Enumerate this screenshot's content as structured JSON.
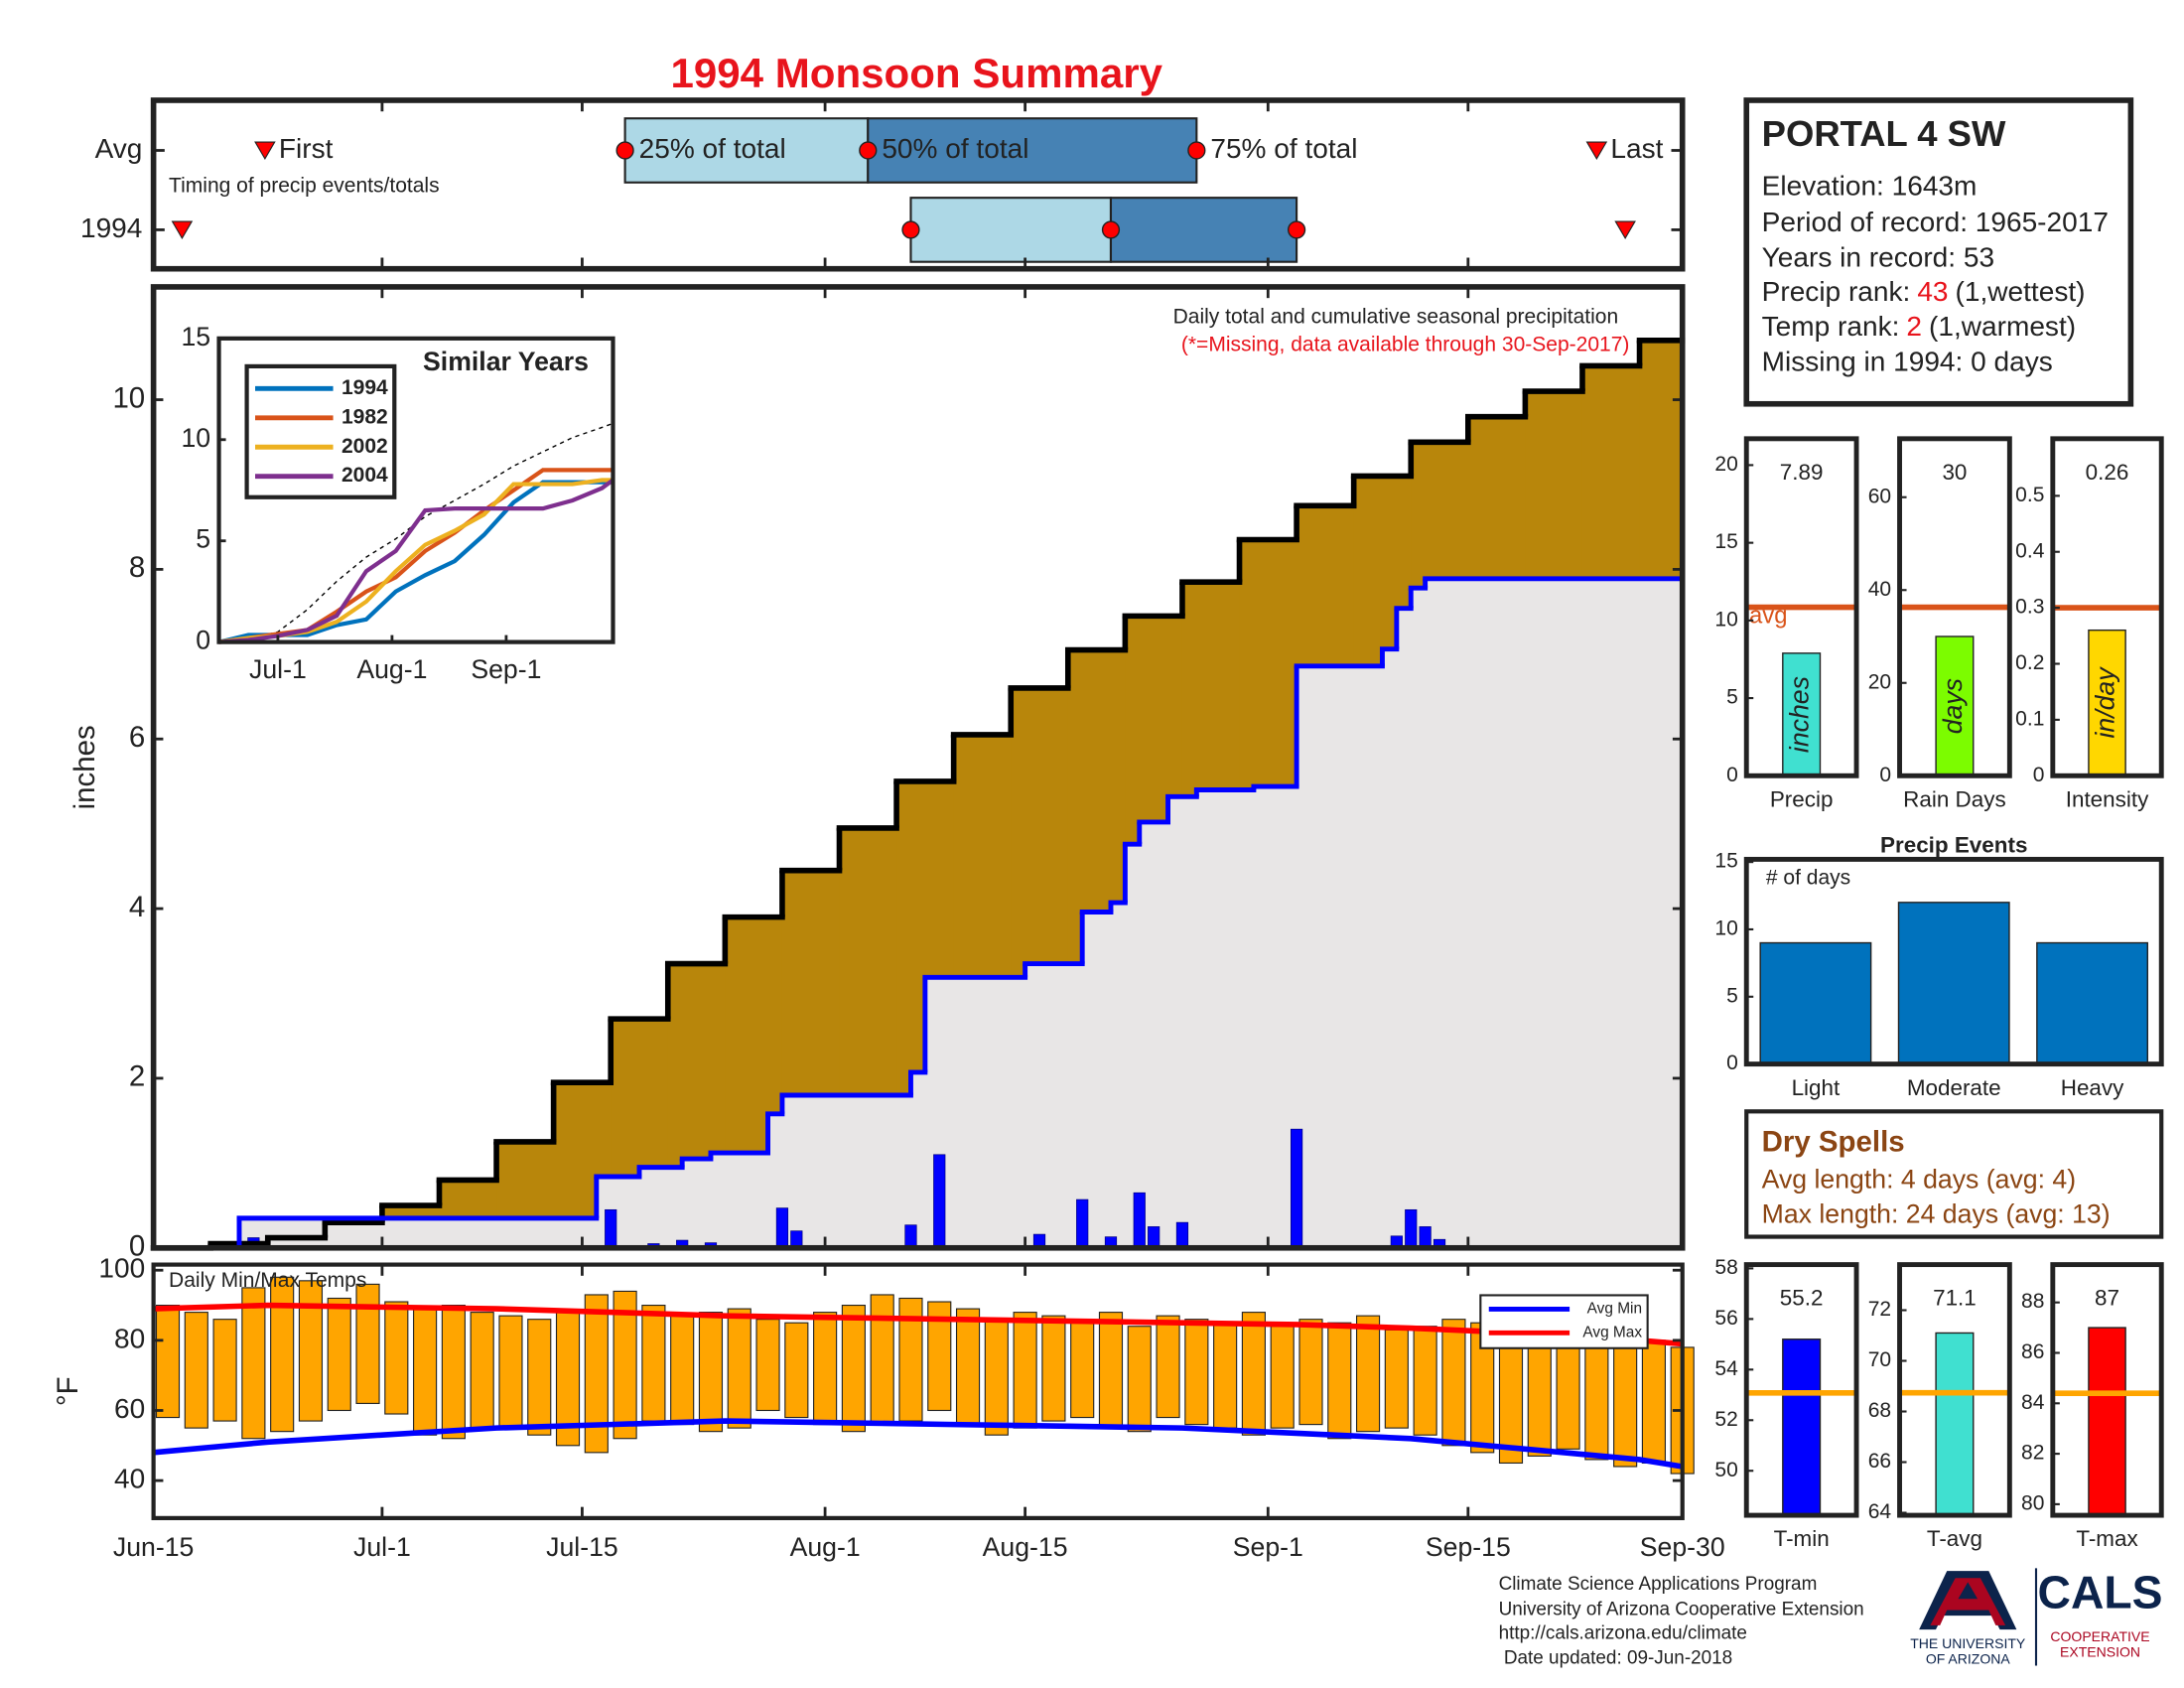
{
  "title": "1994 Monsoon Summary",
  "station": {
    "name": "PORTAL 4 SW",
    "elevation": "Elevation: 1643m",
    "period": "Period of record: 1965-2017",
    "years": "Years in record: 53",
    "precip_rank": {
      "label": "Precip rank:",
      "value": 43,
      "note": "(1,wettest)"
    },
    "temp_rank": {
      "label": "Temp rank:",
      "value": 2,
      "note": "(1,warmest)"
    },
    "missing": "Missing in 1994: 0 days"
  },
  "dry_spells": {
    "title": "Dry Spells",
    "lines": [
      "Avg length: 4 days (avg: 4)",
      "Max length: 24 days (avg: 13)"
    ],
    "color": "#8b4513"
  },
  "footer": [
    "Climate Science Applications Program",
    "University of Arizona Cooperative Extension",
    "http://cals.arizona.edu/climate",
    " Date updated: 09-Jun-2018"
  ],
  "logo": {
    "university": [
      "THE UNIVERSITY",
      "OF ARIZONA"
    ],
    "cals": "CALS",
    "extension": [
      "COOPERATIVE",
      "EXTENSION"
    ]
  },
  "chart_data": [
    {
      "type": "timeline",
      "annotation": "Timing of precip events/totals",
      "markers": [
        "First",
        "25% of total",
        "50% of total",
        "75% of total",
        "Last"
      ],
      "series": [
        {
          "name": "Avg",
          "values": [
            7.8,
            33,
            50,
            73,
            101
          ]
        },
        {
          "name": "1994",
          "values": [
            2,
            53,
            67,
            80,
            103
          ]
        }
      ],
      "xlim": [
        0,
        107
      ],
      "colors": [
        "#add8e6",
        "#4682b4"
      ],
      "marker_color": "#ff0000"
    },
    {
      "type": "step",
      "annotation": "Daily total and cumulative seasonal precipitation",
      "note": "(*=Missing, data available through 30-Sep-2017)",
      "ylabel": "inches",
      "xlim": [
        0,
        107
      ],
      "ylim": [
        0,
        11.33
      ],
      "yticks": [
        0,
        2,
        4,
        6,
        8,
        10
      ],
      "cumulative_avg": {
        "x": [
          0,
          4,
          8,
          12,
          16,
          20,
          24,
          28,
          32,
          36,
          40,
          44,
          48,
          52,
          56,
          60,
          64,
          68,
          72,
          76,
          80,
          84,
          88,
          92,
          96,
          100,
          104
        ],
        "values": [
          0,
          0.05,
          0.12,
          0.3,
          0.5,
          0.8,
          1.25,
          1.95,
          2.7,
          3.35,
          3.9,
          4.45,
          4.95,
          5.5,
          6.05,
          6.6,
          7.05,
          7.45,
          7.85,
          8.35,
          8.75,
          9.1,
          9.5,
          9.8,
          10.1,
          10.4,
          10.7
        ],
        "color": "#000000",
        "fill": "#b8860b"
      },
      "cumulative_year": {
        "x": [
          0,
          6,
          31,
          34,
          37,
          39,
          43,
          44,
          53,
          54,
          61,
          65,
          67,
          68,
          69,
          71,
          73,
          77,
          80,
          86,
          87,
          88,
          89
        ],
        "values": [
          0,
          0.35,
          0.84,
          0.95,
          1.05,
          1.12,
          1.58,
          1.8,
          2.07,
          3.19,
          3.35,
          3.96,
          4.07,
          4.76,
          5.02,
          5.32,
          5.4,
          5.44,
          6.86,
          7.06,
          7.54,
          7.78,
          7.89
        ],
        "color": "#0000ff",
        "fill": "#e8e6e6"
      },
      "daily": {
        "x": [
          7,
          32,
          35,
          37,
          39,
          44,
          45,
          53,
          55,
          62,
          65,
          67,
          69,
          70,
          72,
          80,
          87,
          88,
          89,
          90
        ],
        "values": [
          0.12,
          0.45,
          0.05,
          0.09,
          0.06,
          0.47,
          0.2,
          0.27,
          1.1,
          0.16,
          0.57,
          0.13,
          0.65,
          0.25,
          0.3,
          1.4,
          0.14,
          0.45,
          0.25,
          0.1
        ],
        "color": "#0000ff"
      }
    },
    {
      "type": "line",
      "title": "Similar Years",
      "xlim": [
        0,
        107
      ],
      "ylim": [
        0,
        15
      ],
      "yticks": [
        0,
        5,
        10,
        15
      ],
      "xticks": [
        {
          "value": 16,
          "label": "Jul-1"
        },
        {
          "value": 47,
          "label": "Aug-1"
        },
        {
          "value": 78,
          "label": "Sep-1"
        }
      ],
      "legend": "upper left",
      "x": [
        0,
        8,
        16,
        24,
        32,
        40,
        48,
        56,
        64,
        72,
        80,
        88,
        96,
        104,
        107
      ],
      "series": [
        {
          "color": "#000000",
          "dash": true,
          "values": [
            0,
            0.12,
            0.5,
            1.6,
            3.0,
            4.2,
            5.1,
            6.2,
            7.0,
            7.8,
            8.7,
            9.4,
            10.1,
            10.6,
            10.8
          ]
        },
        {
          "name": "1994",
          "color": "#0072bd",
          "values": [
            0,
            0.35,
            0.35,
            0.35,
            0.84,
            1.12,
            2.5,
            3.3,
            4.0,
            5.3,
            6.9,
            7.9,
            7.9,
            7.9,
            7.9
          ]
        },
        {
          "name": "1982",
          "color": "#d95319",
          "values": [
            0,
            0.2,
            0.4,
            0.6,
            1.5,
            2.5,
            3.2,
            4.5,
            5.4,
            6.5,
            7.5,
            8.5,
            8.5,
            8.5,
            8.5
          ]
        },
        {
          "name": "2002",
          "color": "#edb120",
          "values": [
            0,
            0.2,
            0.3,
            0.5,
            1.0,
            2.0,
            3.5,
            4.8,
            5.5,
            6.3,
            7.8,
            7.8,
            7.8,
            8.0,
            8.0
          ]
        },
        {
          "name": "2004",
          "color": "#7e2f8e",
          "values": [
            0,
            0.1,
            0.3,
            0.6,
            1.3,
            3.5,
            4.5,
            6.5,
            6.6,
            6.6,
            6.6,
            6.6,
            7.0,
            7.6,
            8.0
          ]
        }
      ]
    },
    {
      "type": "floating",
      "title": "Daily Min/Max Temps",
      "ylabel": "°F",
      "xlim": [
        0,
        107
      ],
      "ylim": [
        29.3,
        101.6
      ],
      "yticks": [
        40,
        60,
        80,
        100
      ],
      "xticks": [
        {
          "value": 0,
          "label": "Jun-15"
        },
        {
          "value": 16,
          "label": "Jul-1"
        },
        {
          "value": 30,
          "label": "Jul-15"
        },
        {
          "value": 47,
          "label": "Aug-1"
        },
        {
          "value": 61,
          "label": "Aug-15"
        },
        {
          "value": 78,
          "label": "Sep-1"
        },
        {
          "value": 92,
          "label": "Sep-15"
        },
        {
          "value": 107,
          "label": "Sep-30"
        }
      ],
      "color": "#ffa500",
      "x": [
        0,
        2,
        4,
        6,
        8,
        10,
        12,
        14,
        16,
        18,
        20,
        22,
        24,
        26,
        28,
        30,
        32,
        34,
        36,
        38,
        40,
        42,
        44,
        46,
        48,
        50,
        52,
        54,
        56,
        58,
        60,
        62,
        64,
        66,
        68,
        70,
        72,
        74,
        76,
        78,
        80,
        82,
        84,
        86,
        88,
        90,
        92,
        94,
        96,
        98,
        100,
        102,
        104,
        106
      ],
      "high": [
        90,
        88,
        86,
        95,
        98,
        97,
        92,
        96,
        91,
        89,
        90,
        88,
        87,
        86,
        88,
        93,
        94,
        90,
        87,
        88,
        89,
        86,
        85,
        88,
        90,
        93,
        92,
        91,
        89,
        86,
        88,
        87,
        86,
        88,
        84,
        87,
        86,
        85,
        88,
        84,
        86,
        85,
        87,
        83,
        84,
        86,
        85,
        84,
        82,
        80,
        83,
        81,
        80,
        78
      ],
      "low": [
        58,
        55,
        57,
        52,
        54,
        57,
        60,
        62,
        59,
        53,
        52,
        55,
        55,
        53,
        50,
        48,
        52,
        57,
        56,
        54,
        55,
        60,
        58,
        56,
        54,
        56,
        57,
        60,
        56,
        53,
        55,
        57,
        58,
        55,
        54,
        58,
        56,
        55,
        53,
        55,
        56,
        52,
        54,
        55,
        53,
        50,
        48,
        45,
        47,
        49,
        46,
        44,
        45,
        42
      ],
      "legend": "upper right",
      "lines": [
        {
          "name": "Avg Min",
          "color": "#0000ff",
          "x": [
            0,
            8,
            16,
            24,
            32,
            40,
            48,
            56,
            64,
            72,
            80,
            88,
            96,
            104,
            107
          ],
          "values": [
            48,
            51,
            53,
            55,
            56,
            57,
            56.5,
            56,
            55.5,
            55,
            53.5,
            52,
            49,
            46,
            44
          ]
        },
        {
          "name": "Avg Max",
          "color": "#ff0000",
          "x": [
            0,
            8,
            16,
            24,
            32,
            40,
            48,
            56,
            64,
            72,
            80,
            88,
            96,
            104,
            107
          ],
          "values": [
            89,
            90,
            89.5,
            89,
            88,
            87,
            86.5,
            86,
            85.5,
            85,
            84.5,
            83.5,
            82,
            80,
            79
          ]
        }
      ]
    },
    {
      "type": "bar",
      "categories": [
        "Precip"
      ],
      "values": [
        7.89
      ],
      "color": "#40e0d0",
      "bar_label": "inches",
      "avg": 10.85,
      "avg_label": "avg",
      "avg_color": "#d95319",
      "ylim": [
        0,
        21.7
      ],
      "yticks": [
        0,
        5,
        10,
        15,
        20
      ]
    },
    {
      "type": "bar",
      "categories": [
        "Rain Days"
      ],
      "values": [
        30
      ],
      "color": "#7cfc00",
      "bar_label": "days",
      "avg": 36.3,
      "avg_color": "#d95319",
      "ylim": [
        0,
        72.6
      ],
      "yticks": [
        0,
        20,
        40,
        60
      ]
    },
    {
      "type": "bar",
      "categories": [
        "Intensity"
      ],
      "values": [
        0.26
      ],
      "color": "#ffd700",
      "bar_label": "in/day",
      "avg": 0.3,
      "avg_color": "#d95319",
      "ylim": [
        0,
        0.602
      ],
      "yticks": [
        0,
        0.1,
        0.2,
        0.3,
        0.4,
        0.5
      ]
    },
    {
      "type": "bar",
      "title": "Precip Events",
      "annotation": "# of days",
      "categories": [
        "Light",
        "Moderate",
        "Heavy"
      ],
      "values": [
        9,
        12,
        9
      ],
      "color": "#0072bd",
      "ylim": [
        0,
        15.2
      ],
      "yticks": [
        0,
        5,
        10,
        15
      ]
    },
    {
      "type": "bar",
      "categories": [
        "T-min"
      ],
      "values": [
        55.2
      ],
      "color": "#0000ff",
      "avg": 53.08,
      "avg_color": "#ffa500",
      "ylim": [
        48.24,
        58.15
      ],
      "yticks": [
        50,
        52,
        54,
        56,
        58
      ]
    },
    {
      "type": "bar",
      "categories": [
        "T-avg"
      ],
      "values": [
        71.1
      ],
      "color": "#40e0d0",
      "avg": 68.74,
      "avg_color": "#ffa500",
      "ylim": [
        63.9,
        73.8
      ],
      "yticks": [
        64,
        66,
        68,
        70,
        72
      ]
    },
    {
      "type": "bar",
      "categories": [
        "T-max"
      ],
      "values": [
        87
      ],
      "color": "#ff0000",
      "avg": 84.4,
      "avg_color": "#ffa500",
      "ylim": [
        79.56,
        89.5
      ],
      "yticks": [
        80,
        82,
        84,
        86,
        88
      ]
    }
  ]
}
